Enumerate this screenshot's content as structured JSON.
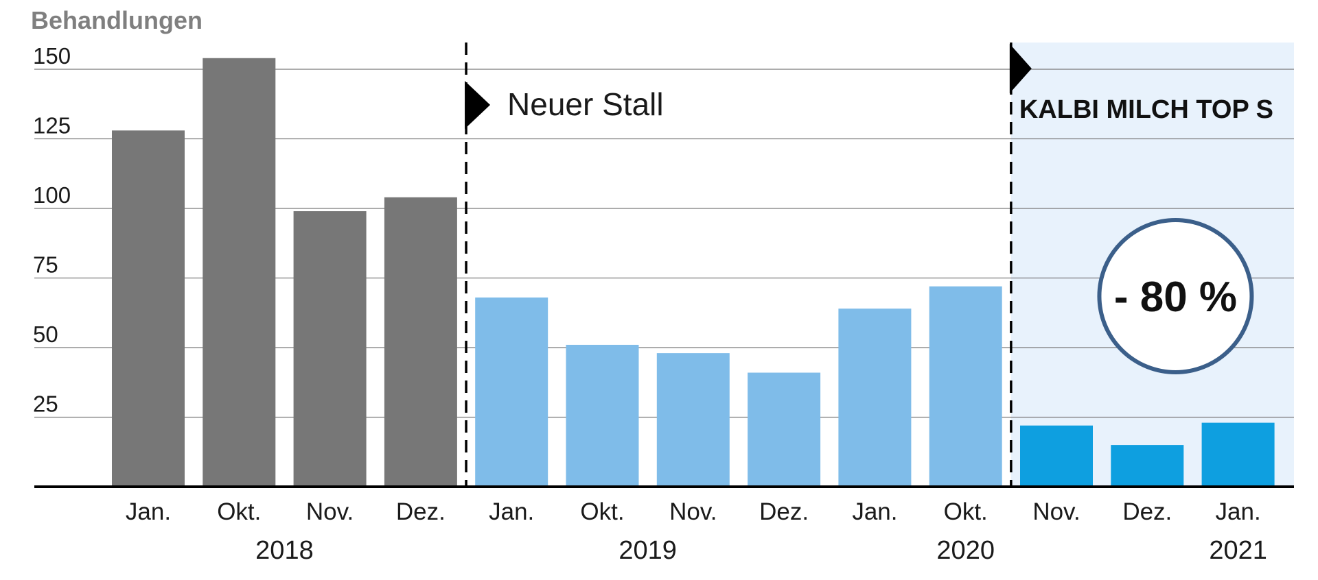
{
  "chart_data": {
    "type": "bar",
    "ylabel": "Behandlungen",
    "xlabel": "",
    "ylim": [
      0,
      160
    ],
    "yticks": [
      25,
      50,
      75,
      100,
      125,
      150
    ],
    "grid": true,
    "categories": [
      "Jan.",
      "Okt.",
      "Nov.",
      "Dez.",
      "Jan.",
      "Okt.",
      "Nov.",
      "Dez.",
      "Jan.",
      "Okt.",
      "Nov.",
      "Dez.",
      "Jan."
    ],
    "values": [
      128,
      154,
      99,
      104,
      68,
      51,
      48,
      41,
      64,
      72,
      22,
      15,
      23
    ],
    "bar_colors": [
      "#777777",
      "#777777",
      "#777777",
      "#777777",
      "#7fbce9",
      "#7fbce9",
      "#7fbce9",
      "#7fbce9",
      "#7fbce9",
      "#7fbce9",
      "#0e9fe0",
      "#0e9fe0",
      "#0e9fe0"
    ],
    "years": [
      {
        "label": "2018",
        "under_index": 1.5
      },
      {
        "label": "2019",
        "under_index": 5.5
      },
      {
        "label": "2020",
        "under_index": 9
      },
      {
        "label": "2021",
        "under_index": 12
      }
    ],
    "annotations": [
      {
        "text": "Neuer Stall",
        "after_index": 3
      },
      {
        "text": "KALBI MILCH TOP S",
        "after_index": 9
      },
      {
        "text": "- 80 %"
      }
    ],
    "highlight_region": {
      "from_index": 10,
      "to_index": 12,
      "color": "#e8f2fc"
    },
    "circle_color": "#3b5f8a"
  }
}
